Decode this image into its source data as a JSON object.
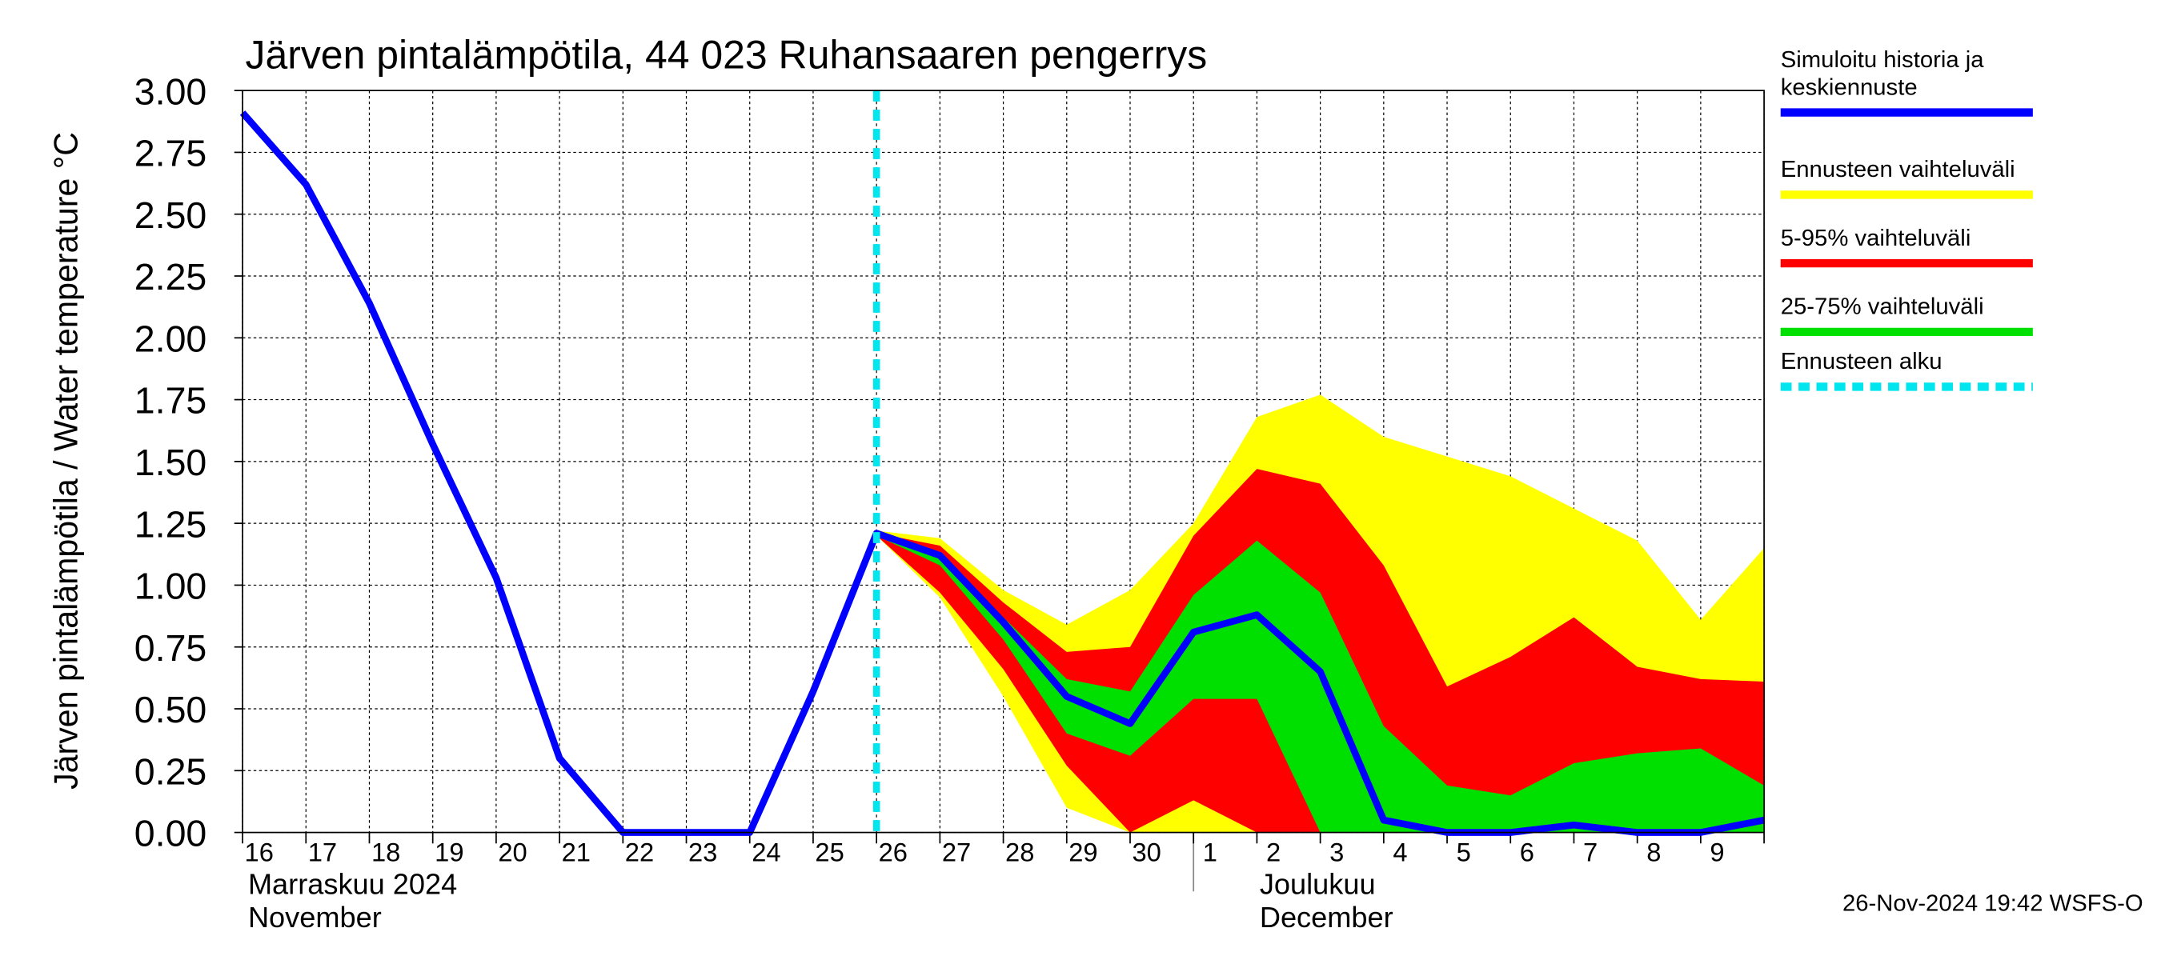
{
  "chart_data": {
    "type": "line",
    "title": "Järven pintalämpötila, 44 023 Ruhansaaren pengerrys",
    "y_label": "Järven pintalämpötila / Water temperature °C",
    "categories": [
      "16",
      "17",
      "18",
      "19",
      "20",
      "21",
      "22",
      "23",
      "24",
      "25",
      "26",
      "27",
      "28",
      "29",
      "30",
      "1",
      "2",
      "3",
      "4",
      "5",
      "6",
      "7",
      "8",
      "9",
      null
    ],
    "month_labels": [
      "Marraskuu 2024",
      "November",
      "Joulukuu",
      "December"
    ],
    "timestamp": "26-Nov-2024 19:42 WSFS-O",
    "ylim": [
      0,
      3
    ],
    "yticks": [
      {
        "value": 0,
        "label": "0.00"
      },
      {
        "value": 0.25,
        "label": "0.25"
      },
      {
        "value": 0.5,
        "label": "0.50"
      },
      {
        "value": 0.75,
        "label": "0.75"
      },
      {
        "value": 1,
        "label": "1.00"
      },
      {
        "value": 1.25,
        "label": "1.25"
      },
      {
        "value": 1.5,
        "label": "1.50"
      },
      {
        "value": 1.75,
        "label": "1.75"
      },
      {
        "value": 2,
        "label": "2.00"
      },
      {
        "value": 2.25,
        "label": "2.25"
      },
      {
        "value": 2.5,
        "label": "2.50"
      },
      {
        "value": 2.75,
        "label": "2.75"
      },
      {
        "value": 3,
        "label": "3.00"
      }
    ],
    "grid": true,
    "series": [
      {
        "name": "Simuloitu historia ja keskiennuste",
        "color": "#0000ff",
        "values": [
          2.91,
          2.62,
          2.14,
          1.57,
          1.03,
          0.3,
          0,
          0,
          0,
          0.57,
          1.21,
          1.12,
          0.85,
          0.55,
          0.44,
          0.81,
          0.88,
          0.65,
          0.05,
          0,
          0,
          0.03,
          0,
          0,
          0.05
        ]
      },
      {
        "name": "Ennusteen vaihteluväli",
        "color": "#ffff00",
        "upper": [
          null,
          null,
          null,
          null,
          null,
          null,
          null,
          null,
          null,
          null,
          1.22,
          1.19,
          0.98,
          0.84,
          0.98,
          1.25,
          1.68,
          1.77,
          1.6,
          1.52,
          1.44,
          1.31,
          1.18,
          0.86,
          1.15
        ],
        "lower": [
          null,
          null,
          null,
          null,
          null,
          null,
          null,
          null,
          null,
          null,
          1.2,
          0.95,
          0.55,
          0.1,
          0,
          0,
          0,
          0,
          0,
          0,
          0,
          0,
          0,
          0,
          0
        ]
      },
      {
        "name": "5-95% vaihteluväli",
        "color": "#ff0000",
        "upper": [
          null,
          null,
          null,
          null,
          null,
          null,
          null,
          null,
          null,
          null,
          1.21,
          1.16,
          0.93,
          0.73,
          0.75,
          1.2,
          1.47,
          1.41,
          1.08,
          0.59,
          0.71,
          0.87,
          0.67,
          0.62,
          0.61
        ],
        "lower": [
          null,
          null,
          null,
          null,
          null,
          null,
          null,
          null,
          null,
          null,
          1.2,
          0.97,
          0.66,
          0.27,
          0,
          0.13,
          0,
          0,
          0,
          0,
          0,
          0,
          0,
          0,
          0
        ]
      },
      {
        "name": "25-75% vaihteluväli",
        "color": "#00e000",
        "upper": [
          null,
          null,
          null,
          null,
          null,
          null,
          null,
          null,
          null,
          null,
          1.2,
          1.12,
          0.87,
          0.62,
          0.57,
          0.96,
          1.18,
          0.97,
          0.43,
          0.19,
          0.15,
          0.28,
          0.32,
          0.34,
          0.19
        ],
        "lower": [
          null,
          null,
          null,
          null,
          null,
          null,
          null,
          null,
          null,
          null,
          1.2,
          1.08,
          0.78,
          0.4,
          0.31,
          0.54,
          0.54,
          0,
          0,
          0,
          0,
          0,
          0,
          0,
          0
        ]
      },
      {
        "name": "Ennusteen alku",
        "color": "#00e5ee",
        "x": "26"
      }
    ]
  }
}
